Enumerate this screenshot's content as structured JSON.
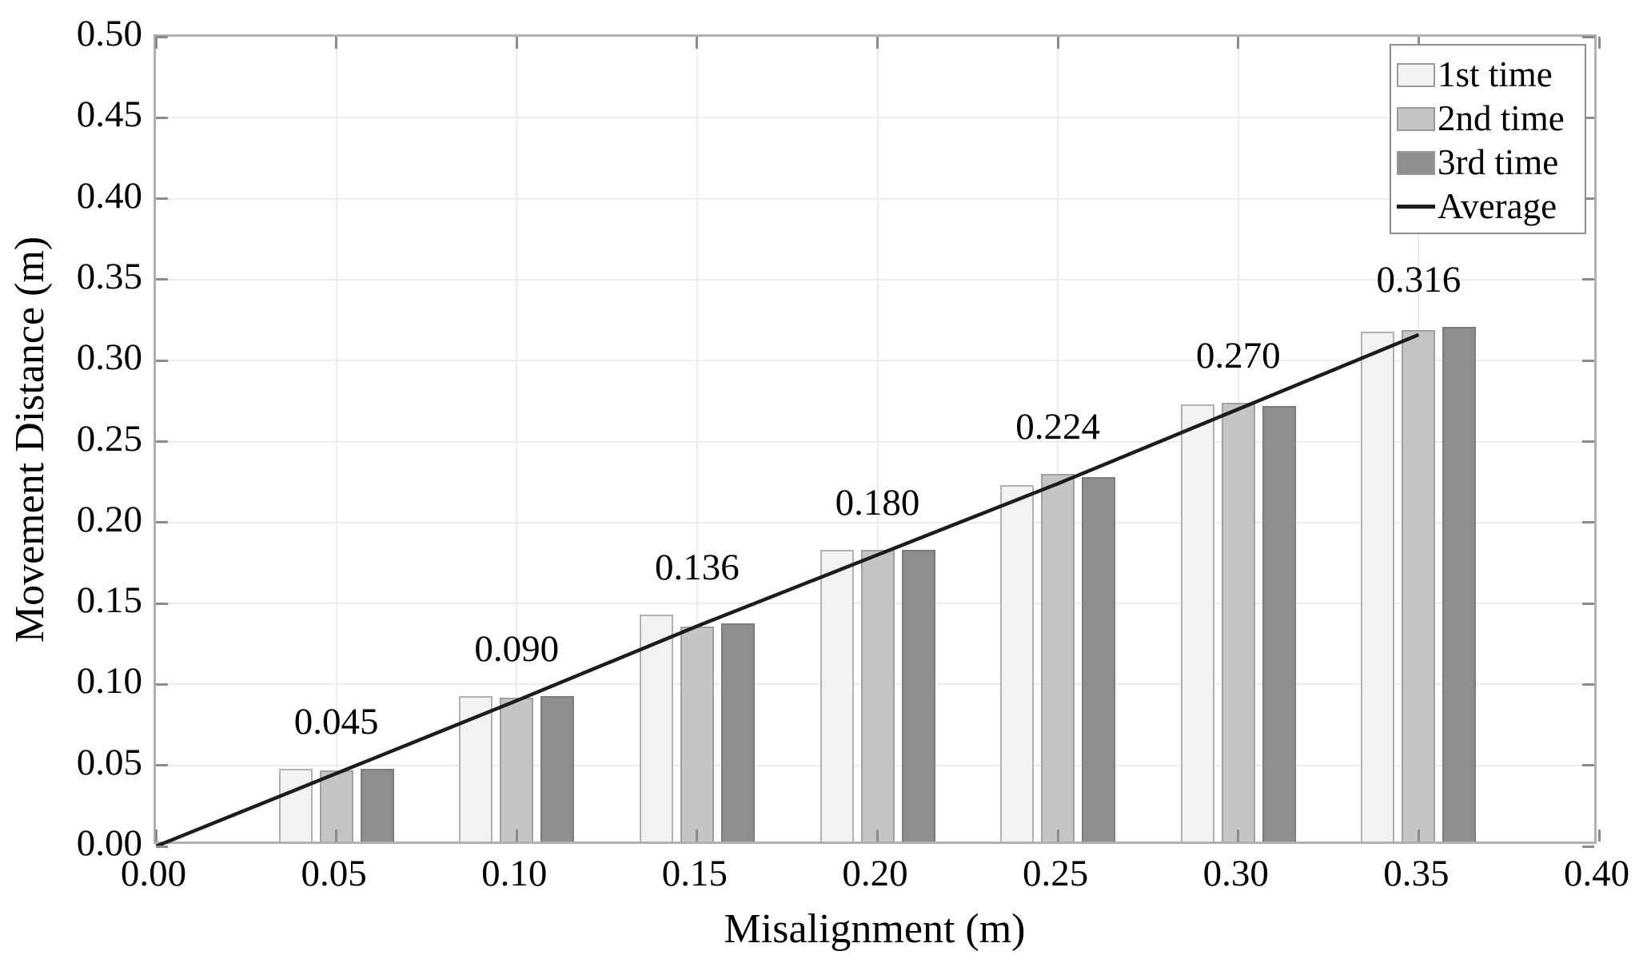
{
  "chart_data": {
    "type": "bar",
    "title": "",
    "xlabel": "Misalignment (m)",
    "ylabel": "Movement Distance (m)",
    "xlim": [
      0.0,
      0.4
    ],
    "ylim": [
      0.0,
      0.5
    ],
    "grid": true,
    "x_ticks": {
      "values": [
        0.0,
        0.05,
        0.1,
        0.15,
        0.2,
        0.25,
        0.3,
        0.35,
        0.4
      ],
      "labels": [
        "0.00",
        "0.05",
        "0.10",
        "0.15",
        "0.20",
        "0.25",
        "0.30",
        "0.35",
        "0.40"
      ]
    },
    "y_ticks": {
      "values": [
        0.0,
        0.05,
        0.1,
        0.15,
        0.2,
        0.25,
        0.3,
        0.35,
        0.4,
        0.45,
        0.5
      ],
      "labels": [
        "0.00",
        "0.05",
        "0.10",
        "0.15",
        "0.20",
        "0.25",
        "0.30",
        "0.35",
        "0.40",
        "0.45",
        "0.50"
      ]
    },
    "categories": [
      0.05,
      0.1,
      0.15,
      0.2,
      0.25,
      0.3,
      0.35
    ],
    "series": [
      {
        "name": "1st time",
        "fill": "#f2f2f2",
        "border": "#b2b2b2",
        "values": [
          0.045,
          0.09,
          0.14,
          0.18,
          0.22,
          0.27,
          0.315
        ]
      },
      {
        "name": "2nd time",
        "fill": "#c5c5c5",
        "border": "#a0a0a0",
        "values": [
          0.044,
          0.089,
          0.133,
          0.18,
          0.227,
          0.271,
          0.316
        ]
      },
      {
        "name": "3rd time",
        "fill": "#8e8e8e",
        "border": "#7c7c7c",
        "values": [
          0.045,
          0.09,
          0.135,
          0.18,
          0.225,
          0.269,
          0.318
        ]
      }
    ],
    "line_series": {
      "name": "Average",
      "color": "#1c1c1c",
      "x": [
        0.0,
        0.05,
        0.1,
        0.15,
        0.2,
        0.25,
        0.3,
        0.35
      ],
      "values": [
        0.0,
        0.045,
        0.09,
        0.136,
        0.18,
        0.224,
        0.27,
        0.316
      ]
    },
    "bar_labels": [
      "0.045",
      "0.090",
      "0.136",
      "0.180",
      "0.224",
      "0.270",
      "0.316"
    ],
    "legend": {
      "position": "top-right",
      "entries": [
        "1st time",
        "2nd time",
        "3rd time",
        "Average"
      ]
    }
  }
}
